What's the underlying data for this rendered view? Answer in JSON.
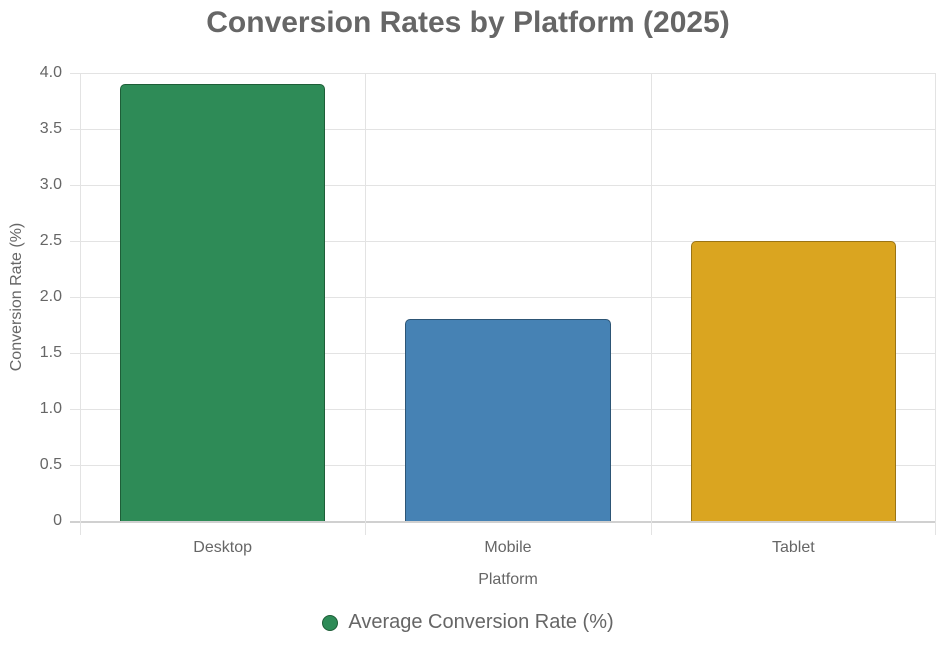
{
  "chart_data": {
    "type": "bar",
    "title": "Conversion Rates by Platform (2025)",
    "xlabel": "Platform",
    "ylabel": "Conversion Rate (%)",
    "categories": [
      "Desktop",
      "Mobile",
      "Tablet"
    ],
    "series": [
      {
        "name": "Average Conversion Rate (%)",
        "values": [
          3.9,
          1.8,
          2.5
        ],
        "colors": [
          "#2e8b57",
          "#4682b4",
          "#daa520"
        ],
        "border_colors": [
          "#1e5e38",
          "#2d5575",
          "#9a7415"
        ]
      }
    ],
    "ylim": [
      0,
      4.0
    ],
    "yticks": [
      "0",
      "0.5",
      "1.0",
      "1.5",
      "2.0",
      "2.5",
      "3.0",
      "3.5",
      "4.0"
    ],
    "grid": true,
    "legend_position": "bottom"
  }
}
